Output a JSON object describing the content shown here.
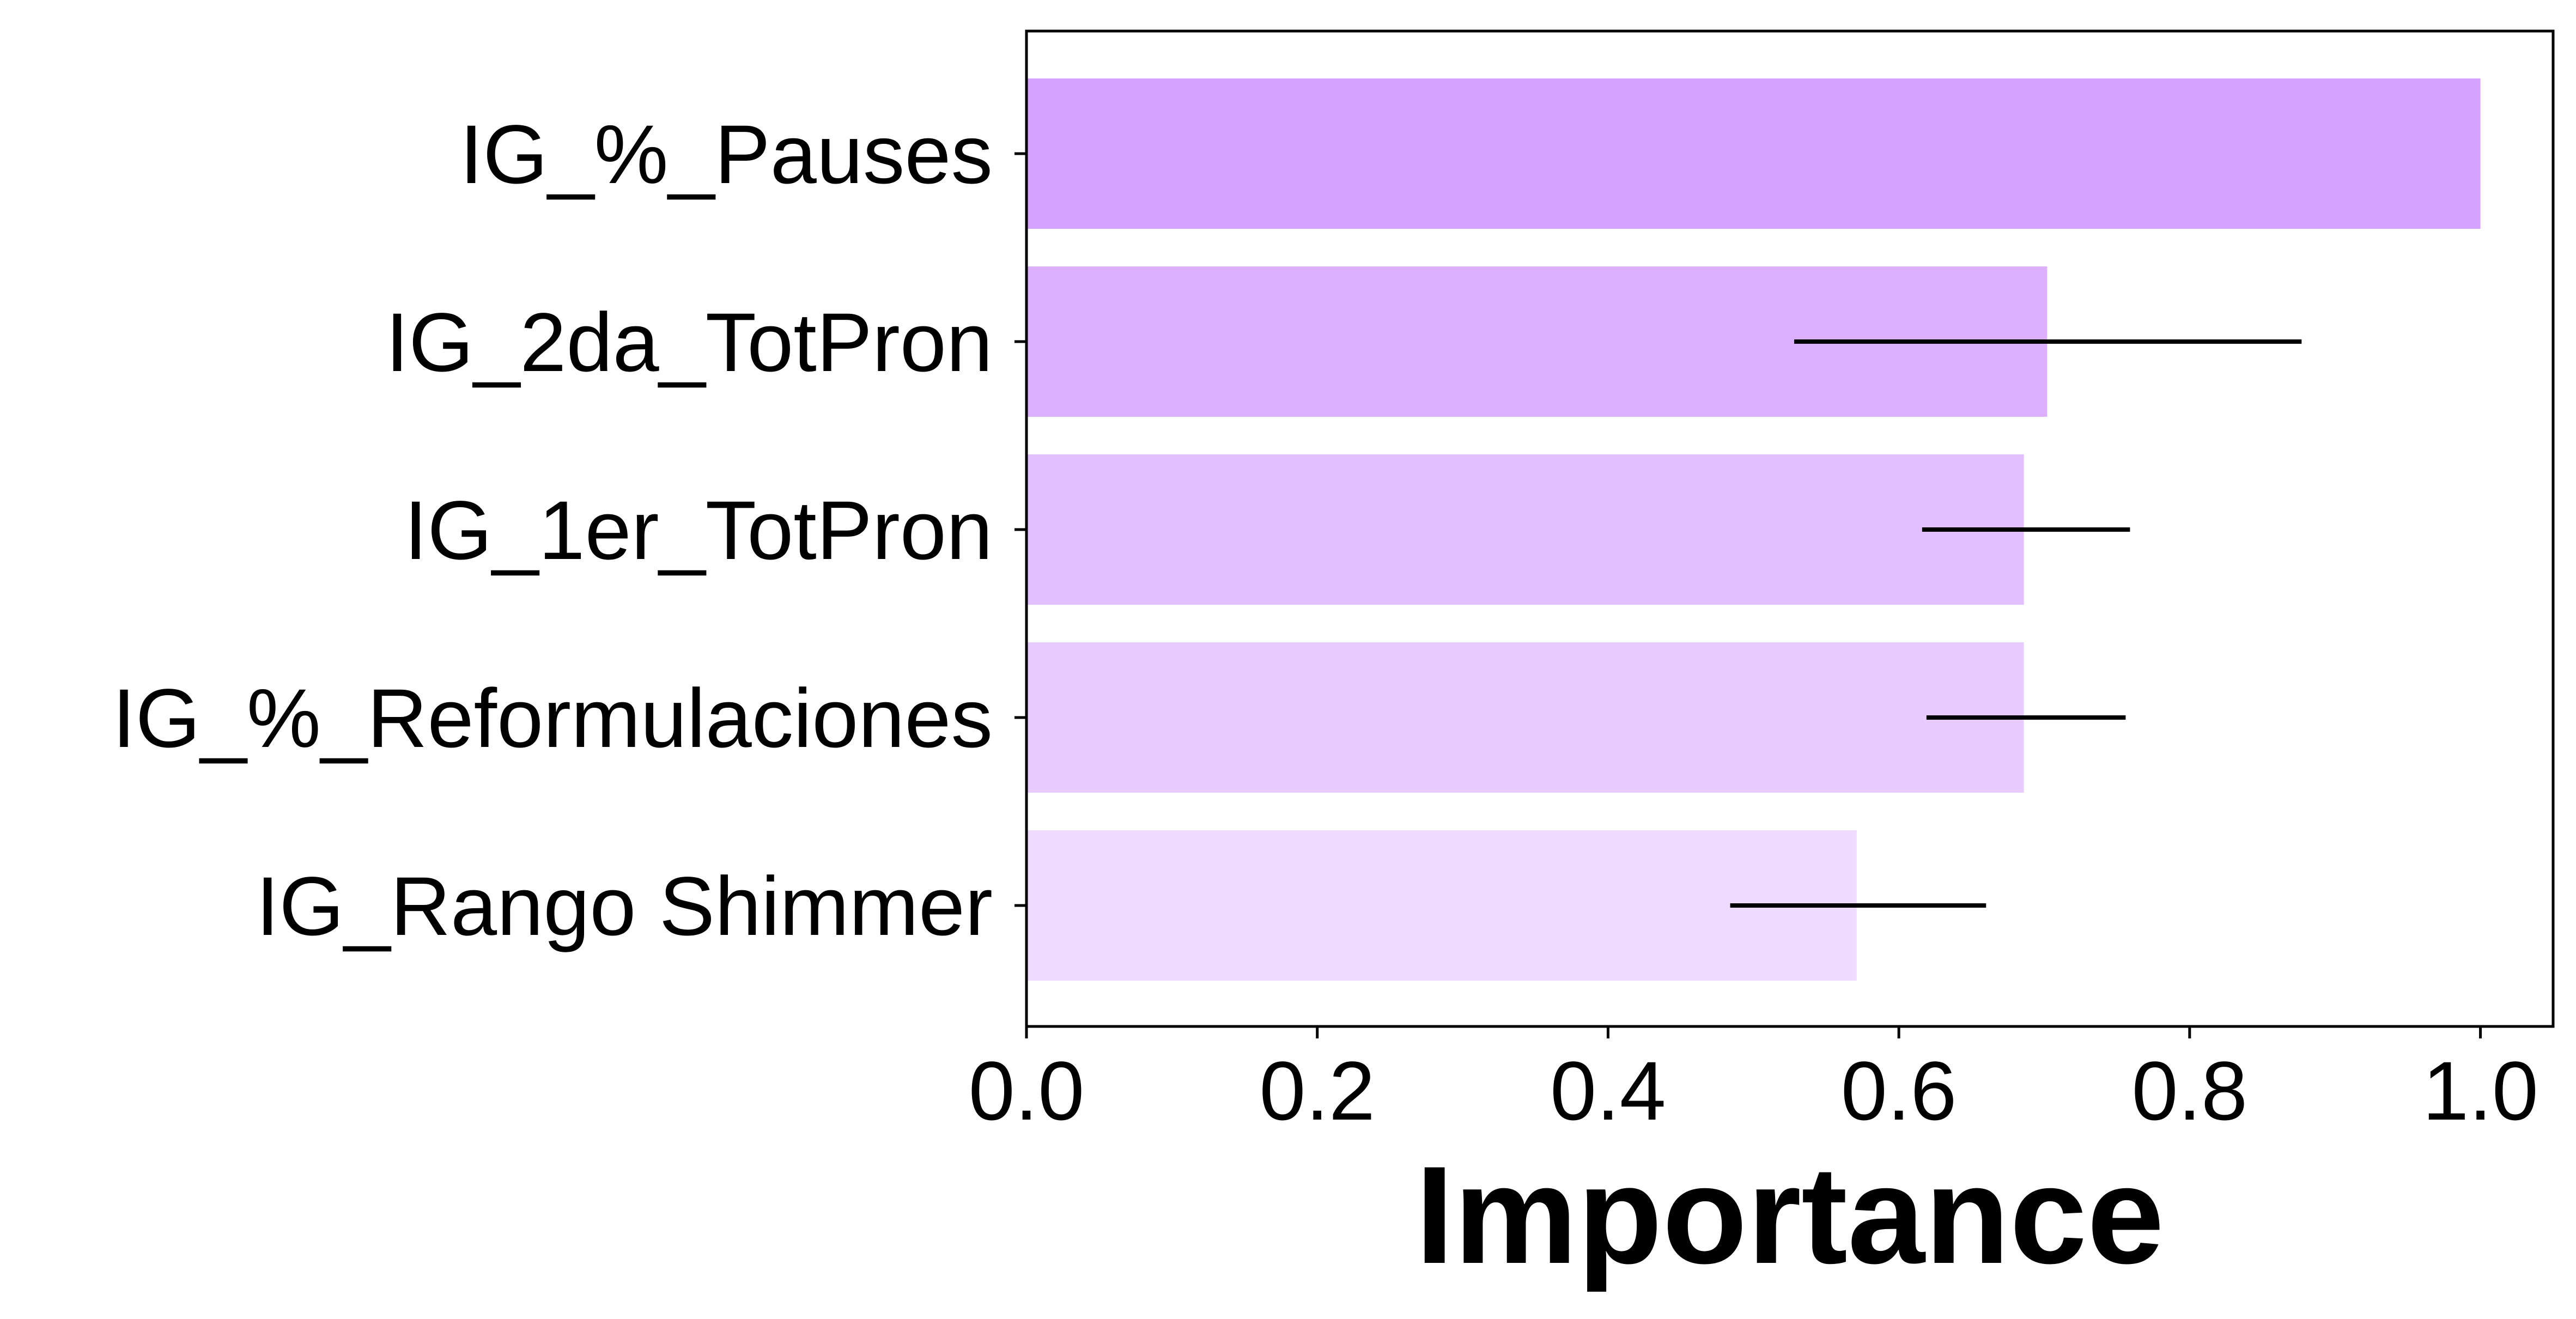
{
  "chart_data": {
    "type": "bar",
    "orientation": "horizontal",
    "categories": [
      "IG_%_Pauses",
      "IG_2da_TotPron",
      "IG_1er_TotPron",
      "IG_%_Reformulaciones",
      "IG_Rango Shimmer"
    ],
    "values": [
      1.0,
      0.702,
      0.686,
      0.686,
      0.571
    ],
    "error_ranges": [
      null,
      [
        0.528,
        0.877
      ],
      [
        0.616,
        0.759
      ],
      [
        0.619,
        0.756
      ],
      [
        0.484,
        0.66
      ]
    ],
    "bar_colors": [
      "#d6a2ff",
      "#dcb0ff",
      "#e2bfff",
      "#e8ccff",
      "#eedbff"
    ],
    "error_color": "#000000",
    "xlabel": "Importance",
    "ylabel": "",
    "xlim": [
      0,
      1.05
    ],
    "xticks": [
      "0.0",
      "0.2",
      "0.4",
      "0.6",
      "0.8",
      "1.0"
    ],
    "grid": false
  }
}
